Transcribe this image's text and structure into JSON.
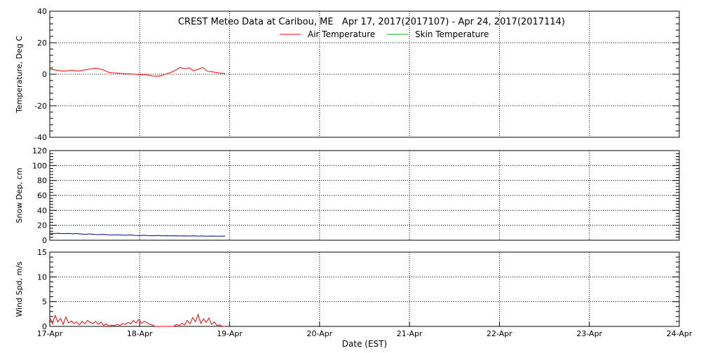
{
  "title": "CREST Meteo Data at Caribou, ME   Apr 17, 2017(2017107) - Apr 24, 2017(2017114)",
  "xlabel": "Date (EST)",
  "x_ticks": [
    "17-Apr",
    "18-Apr",
    "19-Apr",
    "20-Apr",
    "21-Apr",
    "22-Apr",
    "23-Apr",
    "24-Apr"
  ],
  "colors": {
    "air": "#ff0000",
    "skin": "#00b000",
    "snow": "#0000a0",
    "wind": "#ff0000",
    "grid": "#000000"
  },
  "chart_data": [
    {
      "type": "line",
      "ylabel": "Temperature, Deg C",
      "xlim": [
        0,
        7
      ],
      "ylim": [
        -40,
        40
      ],
      "y_ticks": [
        -40,
        -20,
        0,
        20,
        40
      ],
      "grid": true,
      "legend": "top-center",
      "series": [
        {
          "name": "Air Temperature",
          "color": "#ff0000",
          "x": [
            0.0,
            0.05,
            0.1,
            0.15,
            0.2,
            0.25,
            0.3,
            0.35,
            0.4,
            0.45,
            0.5,
            0.55,
            0.6,
            0.65,
            0.7,
            0.75,
            0.8,
            0.85,
            0.9,
            0.95,
            1.0,
            1.05,
            1.1,
            1.15,
            1.2,
            1.25,
            1.3,
            1.35,
            1.4,
            1.45,
            1.5,
            1.55,
            1.6,
            1.65,
            1.7,
            1.75,
            1.8,
            1.85,
            1.9,
            1.95
          ],
          "values": [
            3.2,
            2.8,
            2.4,
            2.0,
            2.2,
            2.6,
            2.0,
            2.3,
            2.9,
            3.3,
            3.9,
            3.5,
            2.6,
            1.3,
            0.9,
            0.8,
            0.5,
            0.3,
            0.2,
            0.0,
            -0.3,
            -0.2,
            -0.6,
            -1.2,
            -1.3,
            -0.8,
            0.3,
            1.3,
            2.6,
            4.3,
            3.4,
            4.1,
            2.2,
            3.1,
            4.3,
            1.9,
            1.6,
            1.1,
            0.7,
            0.4
          ]
        },
        {
          "name": "Skin Temperature",
          "color": "#00b000",
          "x": [],
          "values": []
        }
      ]
    },
    {
      "type": "line",
      "ylabel": "Snow Dep, cm",
      "xlim": [
        0,
        7
      ],
      "ylim": [
        0,
        120
      ],
      "y_ticks": [
        0,
        20,
        40,
        60,
        80,
        100,
        120
      ],
      "grid": true,
      "series": [
        {
          "color": "#0000a0",
          "x": [
            0.0,
            0.05,
            0.1,
            0.15,
            0.2,
            0.25,
            0.3,
            0.35,
            0.4,
            0.45,
            0.5,
            0.55,
            0.6,
            0.65,
            0.7,
            0.75,
            0.8,
            0.85,
            0.9,
            0.95,
            1.0,
            1.05,
            1.1,
            1.15,
            1.2,
            1.25,
            1.3,
            1.35,
            1.4,
            1.45,
            1.5,
            1.55,
            1.6,
            1.65,
            1.7,
            1.75,
            1.8,
            1.85,
            1.9,
            1.95
          ],
          "values": [
            9.5,
            9.0,
            9.3,
            8.8,
            9.1,
            8.5,
            8.9,
            8.3,
            8.0,
            8.4,
            7.8,
            7.5,
            7.9,
            7.2,
            7.0,
            7.4,
            6.9,
            6.7,
            7.1,
            6.5,
            6.3,
            6.6,
            6.2,
            6.0,
            6.3,
            5.9,
            6.1,
            5.8,
            6.0,
            5.7,
            5.9,
            5.6,
            5.8,
            5.5,
            5.7,
            5.4,
            5.6,
            5.3,
            5.5,
            5.5
          ]
        }
      ]
    },
    {
      "type": "line",
      "ylabel": "Wind Spd, m/s",
      "xlim": [
        0,
        7
      ],
      "ylim": [
        0,
        15
      ],
      "y_ticks": [
        0,
        5,
        10,
        15
      ],
      "grid": true,
      "series": [
        {
          "color": "#ff0000",
          "x": [
            0.0,
            0.03,
            0.06,
            0.09,
            0.12,
            0.15,
            0.18,
            0.21,
            0.24,
            0.27,
            0.3,
            0.33,
            0.36,
            0.39,
            0.42,
            0.45,
            0.48,
            0.51,
            0.54,
            0.57,
            0.6,
            0.63,
            0.66,
            0.69,
            0.72,
            0.75,
            0.78,
            0.81,
            0.84,
            0.87,
            0.9,
            0.93,
            0.96,
            0.99,
            1.02,
            1.05,
            1.08,
            1.11,
            1.14,
            1.17,
            1.2,
            1.23,
            1.26,
            1.29,
            1.32,
            1.35,
            1.38,
            1.41,
            1.44,
            1.47,
            1.5,
            1.53,
            1.56,
            1.59,
            1.62,
            1.65,
            1.68,
            1.71,
            1.74,
            1.77,
            1.8,
            1.83,
            1.86,
            1.89,
            1.92,
            1.95
          ],
          "values": [
            1.8,
            0.5,
            2.2,
            0.9,
            1.6,
            0.4,
            1.9,
            0.7,
            1.1,
            0.6,
            0.9,
            0.3,
            1.0,
            0.5,
            1.2,
            0.8,
            0.6,
            1.0,
            0.4,
            0.9,
            0.2,
            0.5,
            0.0,
            0.3,
            0.1,
            0.4,
            0.2,
            0.6,
            0.4,
            0.8,
            0.5,
            1.2,
            0.7,
            1.4,
            0.6,
            1.0,
            0.8,
            0.4,
            0.3,
            0.0,
            0.0,
            0.0,
            0.0,
            0.0,
            0.0,
            0.0,
            0.0,
            0.4,
            0.2,
            0.6,
            0.3,
            1.2,
            0.5,
            1.8,
            0.9,
            2.4,
            0.6,
            1.5,
            0.8,
            1.7,
            0.4,
            0.9,
            0.2,
            0.3,
            0.0,
            0.0
          ]
        }
      ]
    }
  ]
}
